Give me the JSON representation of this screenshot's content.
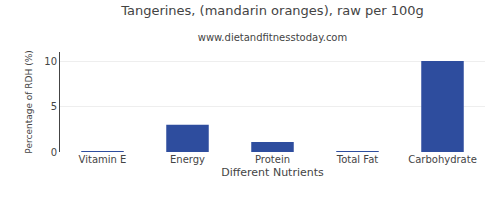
{
  "chart_data": {
    "type": "bar",
    "title": "Tangerines, (mandarin oranges), raw per 100g",
    "subtitle": "www.dietandfitnesstoday.com",
    "xlabel": "Different Nutrients",
    "ylabel": "Percentage of RDH (%)",
    "categories": [
      "Vitamin E",
      "Energy",
      "Protein",
      "Total Fat",
      "Carbohydrate"
    ],
    "values": [
      0.07,
      3.0,
      1.1,
      0.1,
      10.0
    ],
    "color": "#2e4d9e",
    "ylim": [
      0,
      11
    ],
    "yticks": [
      0,
      5,
      10
    ],
    "grid": true
  }
}
